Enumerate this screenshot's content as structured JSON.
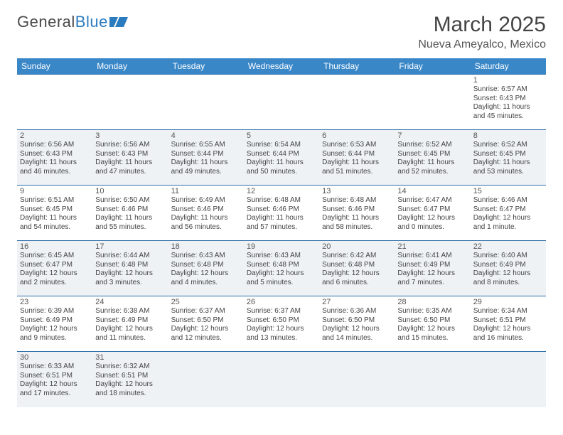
{
  "logo": {
    "text1": "General",
    "text2": "Blue"
  },
  "title": "March 2025",
  "location": "Nueva Ameyalco, Mexico",
  "colors": {
    "header_bg": "#3a87c8",
    "header_text": "#ffffff",
    "row_alt_bg": "#eef2f5",
    "border": "#2f6fa8",
    "logo_blue": "#2b7bbf"
  },
  "weekdays": [
    "Sunday",
    "Monday",
    "Tuesday",
    "Wednesday",
    "Thursday",
    "Friday",
    "Saturday"
  ],
  "weeks": [
    [
      null,
      null,
      null,
      null,
      null,
      null,
      {
        "n": "1",
        "sr": "Sunrise: 6:57 AM",
        "ss": "Sunset: 6:43 PM",
        "dl": "Daylight: 11 hours and 45 minutes."
      }
    ],
    [
      {
        "n": "2",
        "sr": "Sunrise: 6:56 AM",
        "ss": "Sunset: 6:43 PM",
        "dl": "Daylight: 11 hours and 46 minutes."
      },
      {
        "n": "3",
        "sr": "Sunrise: 6:56 AM",
        "ss": "Sunset: 6:43 PM",
        "dl": "Daylight: 11 hours and 47 minutes."
      },
      {
        "n": "4",
        "sr": "Sunrise: 6:55 AM",
        "ss": "Sunset: 6:44 PM",
        "dl": "Daylight: 11 hours and 49 minutes."
      },
      {
        "n": "5",
        "sr": "Sunrise: 6:54 AM",
        "ss": "Sunset: 6:44 PM",
        "dl": "Daylight: 11 hours and 50 minutes."
      },
      {
        "n": "6",
        "sr": "Sunrise: 6:53 AM",
        "ss": "Sunset: 6:44 PM",
        "dl": "Daylight: 11 hours and 51 minutes."
      },
      {
        "n": "7",
        "sr": "Sunrise: 6:52 AM",
        "ss": "Sunset: 6:45 PM",
        "dl": "Daylight: 11 hours and 52 minutes."
      },
      {
        "n": "8",
        "sr": "Sunrise: 6:52 AM",
        "ss": "Sunset: 6:45 PM",
        "dl": "Daylight: 11 hours and 53 minutes."
      }
    ],
    [
      {
        "n": "9",
        "sr": "Sunrise: 6:51 AM",
        "ss": "Sunset: 6:45 PM",
        "dl": "Daylight: 11 hours and 54 minutes."
      },
      {
        "n": "10",
        "sr": "Sunrise: 6:50 AM",
        "ss": "Sunset: 6:46 PM",
        "dl": "Daylight: 11 hours and 55 minutes."
      },
      {
        "n": "11",
        "sr": "Sunrise: 6:49 AM",
        "ss": "Sunset: 6:46 PM",
        "dl": "Daylight: 11 hours and 56 minutes."
      },
      {
        "n": "12",
        "sr": "Sunrise: 6:48 AM",
        "ss": "Sunset: 6:46 PM",
        "dl": "Daylight: 11 hours and 57 minutes."
      },
      {
        "n": "13",
        "sr": "Sunrise: 6:48 AM",
        "ss": "Sunset: 6:46 PM",
        "dl": "Daylight: 11 hours and 58 minutes."
      },
      {
        "n": "14",
        "sr": "Sunrise: 6:47 AM",
        "ss": "Sunset: 6:47 PM",
        "dl": "Daylight: 12 hours and 0 minutes."
      },
      {
        "n": "15",
        "sr": "Sunrise: 6:46 AM",
        "ss": "Sunset: 6:47 PM",
        "dl": "Daylight: 12 hours and 1 minute."
      }
    ],
    [
      {
        "n": "16",
        "sr": "Sunrise: 6:45 AM",
        "ss": "Sunset: 6:47 PM",
        "dl": "Daylight: 12 hours and 2 minutes."
      },
      {
        "n": "17",
        "sr": "Sunrise: 6:44 AM",
        "ss": "Sunset: 6:48 PM",
        "dl": "Daylight: 12 hours and 3 minutes."
      },
      {
        "n": "18",
        "sr": "Sunrise: 6:43 AM",
        "ss": "Sunset: 6:48 PM",
        "dl": "Daylight: 12 hours and 4 minutes."
      },
      {
        "n": "19",
        "sr": "Sunrise: 6:43 AM",
        "ss": "Sunset: 6:48 PM",
        "dl": "Daylight: 12 hours and 5 minutes."
      },
      {
        "n": "20",
        "sr": "Sunrise: 6:42 AM",
        "ss": "Sunset: 6:48 PM",
        "dl": "Daylight: 12 hours and 6 minutes."
      },
      {
        "n": "21",
        "sr": "Sunrise: 6:41 AM",
        "ss": "Sunset: 6:49 PM",
        "dl": "Daylight: 12 hours and 7 minutes."
      },
      {
        "n": "22",
        "sr": "Sunrise: 6:40 AM",
        "ss": "Sunset: 6:49 PM",
        "dl": "Daylight: 12 hours and 8 minutes."
      }
    ],
    [
      {
        "n": "23",
        "sr": "Sunrise: 6:39 AM",
        "ss": "Sunset: 6:49 PM",
        "dl": "Daylight: 12 hours and 9 minutes."
      },
      {
        "n": "24",
        "sr": "Sunrise: 6:38 AM",
        "ss": "Sunset: 6:49 PM",
        "dl": "Daylight: 12 hours and 11 minutes."
      },
      {
        "n": "25",
        "sr": "Sunrise: 6:37 AM",
        "ss": "Sunset: 6:50 PM",
        "dl": "Daylight: 12 hours and 12 minutes."
      },
      {
        "n": "26",
        "sr": "Sunrise: 6:37 AM",
        "ss": "Sunset: 6:50 PM",
        "dl": "Daylight: 12 hours and 13 minutes."
      },
      {
        "n": "27",
        "sr": "Sunrise: 6:36 AM",
        "ss": "Sunset: 6:50 PM",
        "dl": "Daylight: 12 hours and 14 minutes."
      },
      {
        "n": "28",
        "sr": "Sunrise: 6:35 AM",
        "ss": "Sunset: 6:50 PM",
        "dl": "Daylight: 12 hours and 15 minutes."
      },
      {
        "n": "29",
        "sr": "Sunrise: 6:34 AM",
        "ss": "Sunset: 6:51 PM",
        "dl": "Daylight: 12 hours and 16 minutes."
      }
    ],
    [
      {
        "n": "30",
        "sr": "Sunrise: 6:33 AM",
        "ss": "Sunset: 6:51 PM",
        "dl": "Daylight: 12 hours and 17 minutes."
      },
      {
        "n": "31",
        "sr": "Sunrise: 6:32 AM",
        "ss": "Sunset: 6:51 PM",
        "dl": "Daylight: 12 hours and 18 minutes."
      },
      null,
      null,
      null,
      null,
      null
    ]
  ]
}
